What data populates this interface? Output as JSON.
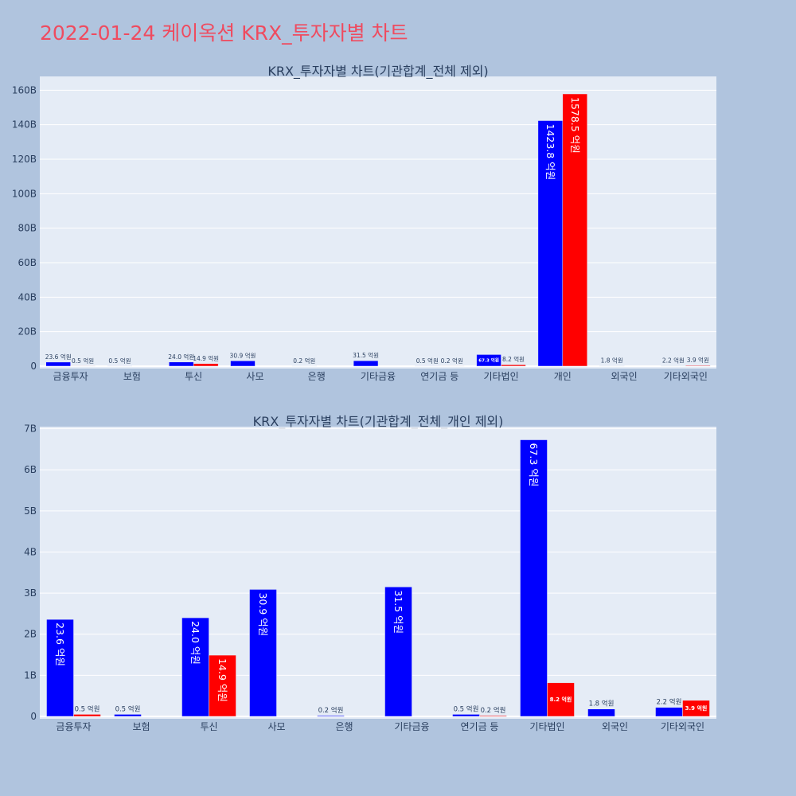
{
  "page": {
    "title": "2022-01-24 케이옥션 KRX_투자자별 차트"
  },
  "colors": {
    "buy": "#0000ff",
    "sell": "#ff0000",
    "plot_bg": "#e5ecf6",
    "background": "#b0c4de",
    "title": "#ef4b5f"
  },
  "chart_data": [
    {
      "type": "bar",
      "title": "KRX_투자자별 차트(기관합계_전체 제외)",
      "categories": [
        "금융투자",
        "보험",
        "투신",
        "사모",
        "은행",
        "기타금융",
        "연기금 등",
        "기타법인",
        "개인",
        "외국인",
        "기타외국인"
      ],
      "series": [
        {
          "values": [
            2360000000,
            50000000,
            2400000000,
            3090000000,
            20000000,
            3150000000,
            50000000,
            6730000000,
            142380000000,
            180000000,
            220000000
          ],
          "labels": [
            "23.6 억원",
            "0.5 억원",
            "24.0 억원",
            "30.9 억원",
            "0.2 억원",
            "31.5 억원",
            "0.5 억원",
            "67.3 억원",
            "1423.8 억원",
            "1.8 억원",
            "2.2 억원"
          ]
        },
        {
          "values": [
            50000000,
            0,
            1490000000,
            0,
            0,
            0,
            20000000,
            820000000,
            157850000000,
            0,
            390000000
          ],
          "labels": [
            "0.5 억원",
            "",
            "14.9 억원",
            "",
            "",
            "",
            "0.2 억원",
            "8.2 억원",
            "1578.5 억원",
            "",
            "3.9 억원"
          ]
        }
      ],
      "ylim": [
        0,
        168000000000
      ],
      "yticks": [
        0,
        20000000000,
        40000000000,
        60000000000,
        80000000000,
        100000000000,
        120000000000,
        140000000000,
        160000000000
      ],
      "ytick_labels": [
        "0",
        "20B",
        "40B",
        "60B",
        "80B",
        "100B",
        "120B",
        "140B",
        "160B"
      ],
      "grid": true
    },
    {
      "type": "bar",
      "title": "KRX_투자자별 차트(기관합계_전체_개인 제외)",
      "categories": [
        "금융투자",
        "보험",
        "투신",
        "사모",
        "은행",
        "기타금융",
        "연기금 등",
        "기타법인",
        "외국인",
        "기타외국인"
      ],
      "series": [
        {
          "values": [
            2360000000,
            50000000,
            2400000000,
            3090000000,
            20000000,
            3150000000,
            50000000,
            6730000000,
            180000000,
            220000000
          ],
          "labels": [
            "23.6 억원",
            "0.5 억원",
            "24.0 억원",
            "30.9 억원",
            "0.2 억원",
            "31.5 억원",
            "0.5 억원",
            "67.3 억원",
            "1.8 억원",
            "2.2 억원"
          ]
        },
        {
          "values": [
            50000000,
            0,
            1490000000,
            0,
            0,
            0,
            20000000,
            820000000,
            0,
            390000000
          ],
          "labels": [
            "0.5 억원",
            "",
            "14.9 억원",
            "",
            "",
            "",
            "0.2 억원",
            "8.2 억원",
            "",
            "3.9 억원"
          ]
        }
      ],
      "ylim": [
        0,
        7050000000
      ],
      "yticks": [
        0,
        1000000000,
        2000000000,
        3000000000,
        4000000000,
        5000000000,
        6000000000,
        7000000000
      ],
      "ytick_labels": [
        "0",
        "1B",
        "2B",
        "3B",
        "4B",
        "5B",
        "6B",
        "7B"
      ],
      "grid": true
    }
  ]
}
